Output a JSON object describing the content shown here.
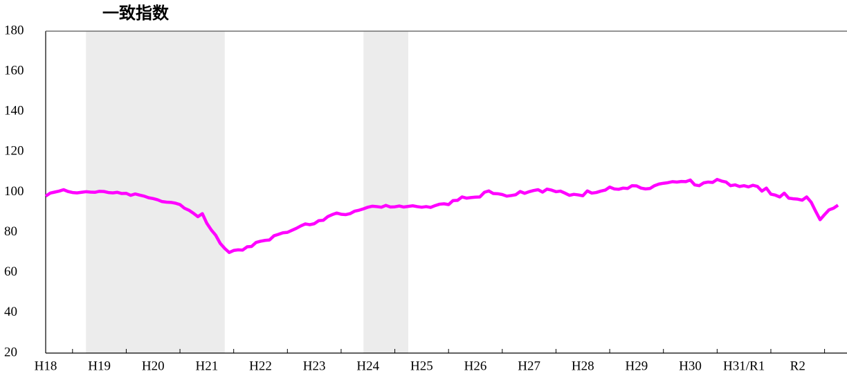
{
  "chart_data": {
    "type": "line",
    "title": "一致指数",
    "color": "#ff00ff",
    "shade_color": "#ececec",
    "shaded_ranges": [
      [
        9,
        40
      ],
      [
        71,
        81
      ]
    ],
    "ylim": [
      20,
      180
    ],
    "yticks": [
      20,
      40,
      60,
      80,
      100,
      120,
      140,
      160,
      180
    ],
    "grid": false,
    "categories": [
      "H18",
      null,
      null,
      null,
      null,
      null,
      null,
      null,
      null,
      null,
      null,
      null,
      "H19",
      null,
      null,
      null,
      null,
      null,
      null,
      null,
      null,
      null,
      null,
      null,
      "H20",
      null,
      null,
      null,
      null,
      null,
      null,
      null,
      null,
      null,
      null,
      null,
      "H21",
      null,
      null,
      null,
      null,
      null,
      null,
      null,
      null,
      null,
      null,
      null,
      "H22",
      null,
      null,
      null,
      null,
      null,
      null,
      null,
      null,
      null,
      null,
      null,
      "H23",
      null,
      null,
      null,
      null,
      null,
      null,
      null,
      null,
      null,
      null,
      null,
      "H24",
      null,
      null,
      null,
      null,
      null,
      null,
      null,
      null,
      null,
      null,
      null,
      "H25",
      null,
      null,
      null,
      null,
      null,
      null,
      null,
      null,
      null,
      null,
      null,
      "H26",
      null,
      null,
      null,
      null,
      null,
      null,
      null,
      null,
      null,
      null,
      null,
      "H27",
      null,
      null,
      null,
      null,
      null,
      null,
      null,
      null,
      null,
      null,
      null,
      "H28",
      null,
      null,
      null,
      null,
      null,
      null,
      null,
      null,
      null,
      null,
      null,
      "H29",
      null,
      null,
      null,
      null,
      null,
      null,
      null,
      null,
      null,
      null,
      null,
      "H30",
      null,
      null,
      null,
      null,
      null,
      null,
      null,
      null,
      null,
      null,
      null,
      "H31/R1",
      null,
      null,
      null,
      null,
      null,
      null,
      null,
      null,
      null,
      null,
      null,
      "R2",
      null,
      null,
      null,
      null,
      null,
      null,
      null,
      null,
      null
    ],
    "values": [
      98,
      99.5,
      100,
      100.5,
      101.2,
      100.3,
      99.8,
      99.6,
      99.9,
      100.2,
      100.0,
      99.9,
      100.4,
      100.3,
      99.8,
      99.6,
      99.9,
      99.3,
      99.4,
      98.4,
      99.1,
      98.5,
      98.0,
      97.2,
      96.8,
      96.2,
      95.3,
      95.0,
      94.9,
      94.5,
      93.8,
      92.0,
      91.0,
      89.5,
      87.8,
      89.3,
      84.5,
      81.2,
      78.5,
      74.5,
      72.0,
      70.0,
      71.0,
      71.3,
      71.2,
      72.8,
      73.0,
      75.0,
      75.6,
      76.0,
      76.2,
      78.3,
      79.0,
      79.8,
      80.0,
      81.0,
      82.0,
      83.2,
      84.2,
      83.8,
      84.3,
      85.8,
      86.0,
      87.8,
      88.8,
      89.6,
      89.0,
      88.8,
      89.3,
      90.5,
      91.0,
      91.7,
      92.5,
      93.0,
      92.8,
      92.5,
      93.4,
      92.6,
      92.7,
      93.1,
      92.6,
      92.9,
      93.2,
      92.8,
      92.5,
      92.8,
      92.4,
      93.3,
      94.0,
      94.2,
      93.8,
      95.8,
      95.9,
      97.6,
      97.0,
      97.3,
      97.5,
      97.6,
      99.9,
      100.6,
      99.3,
      99.2,
      98.8,
      98.0,
      98.3,
      98.7,
      100.3,
      99.4,
      100.2,
      100.8,
      101.2,
      100.0,
      101.5,
      101.0,
      100.2,
      100.5,
      99.5,
      98.4,
      98.9,
      98.6,
      98.2,
      100.6,
      99.5,
      99.8,
      100.5,
      101.0,
      102.5,
      101.6,
      101.4,
      102.0,
      101.8,
      103.2,
      103.1,
      102.0,
      101.6,
      101.8,
      103.2,
      104.0,
      104.4,
      104.7,
      105.2,
      105.0,
      105.3,
      105.2,
      106.0,
      103.6,
      103.2,
      104.6,
      105.0,
      104.8,
      106.3,
      105.5,
      105.0,
      103.2,
      103.6,
      102.8,
      103.2,
      102.6,
      103.4,
      102.8,
      100.5,
      102.0,
      99.0,
      98.5,
      97.6,
      99.5,
      97.0,
      96.7,
      96.5,
      96.0,
      97.6,
      95.0,
      90.5,
      86.3,
      88.8,
      91.2,
      92.0,
      93.5
    ]
  }
}
